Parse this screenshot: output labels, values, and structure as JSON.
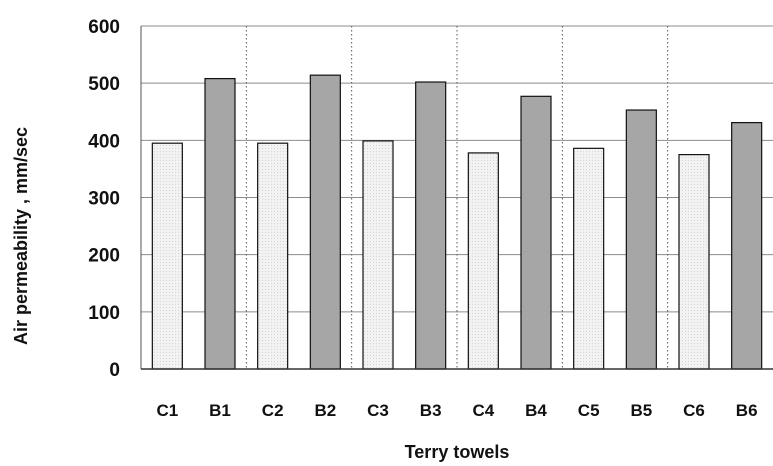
{
  "chart_data": {
    "type": "bar",
    "title": "",
    "xlabel": "Terry towels",
    "ylabel": "Air permeability , mm/sec",
    "categories": [
      "C1",
      "B1",
      "C2",
      "B2",
      "C3",
      "B3",
      "C4",
      "B4",
      "C5",
      "B5",
      "C6",
      "B6"
    ],
    "values": [
      395,
      508,
      395,
      514,
      399,
      502,
      378,
      477,
      386,
      453,
      375,
      431
    ],
    "ylim": [
      0,
      600
    ],
    "yticks": [
      "0",
      "100",
      "200",
      "300",
      "400",
      "500",
      "600"
    ],
    "grid": "horizontal solid, vertical dotted between category pairs",
    "colors": {
      "C": "#f2f2f2",
      "B": "#a6a6a6",
      "edge": "#111111",
      "grid": "#8c8c8c"
    }
  }
}
